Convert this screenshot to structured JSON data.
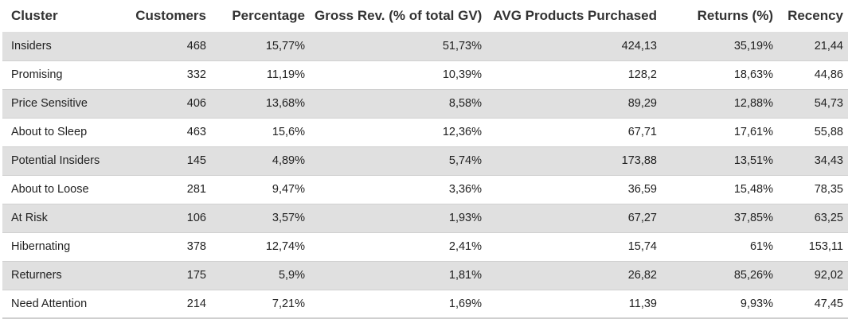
{
  "chart_data": {
    "type": "table",
    "columns": [
      "Cluster",
      "Customers",
      "Percentage",
      "Gross Rev. (% of total GV)",
      "AVG Products Purchased",
      "Returns (%)",
      "Recency"
    ],
    "rows": [
      [
        "Insiders",
        "468",
        "15,77%",
        "51,73%",
        "424,13",
        "35,19%",
        "21,44"
      ],
      [
        "Promising",
        "332",
        "11,19%",
        "10,39%",
        "128,2",
        "18,63%",
        "44,86"
      ],
      [
        "Price Sensitive",
        "406",
        "13,68%",
        "8,58%",
        "89,29",
        "12,88%",
        "54,73"
      ],
      [
        "About to Sleep",
        "463",
        "15,6%",
        "12,36%",
        "67,71",
        "17,61%",
        "55,88"
      ],
      [
        "Potential Insiders",
        "145",
        "4,89%",
        "5,74%",
        "173,88",
        "13,51%",
        "34,43"
      ],
      [
        "About to Loose",
        "281",
        "9,47%",
        "3,36%",
        "36,59",
        "15,48%",
        "78,35"
      ],
      [
        "At Risk",
        "106",
        "3,57%",
        "1,93%",
        "67,27",
        "37,85%",
        "63,25"
      ],
      [
        "Hibernating",
        "378",
        "12,74%",
        "2,41%",
        "15,74",
        "61%",
        "153,11"
      ],
      [
        "Returners",
        "175",
        "5,9%",
        "1,81%",
        "26,82",
        "85,26%",
        "92,02"
      ],
      [
        "Need Attention",
        "214",
        "7,21%",
        "1,69%",
        "11,39",
        "9,93%",
        "47,45"
      ]
    ],
    "colors": {
      "stripe": "#e0e0e0",
      "background": "#ffffff"
    }
  }
}
